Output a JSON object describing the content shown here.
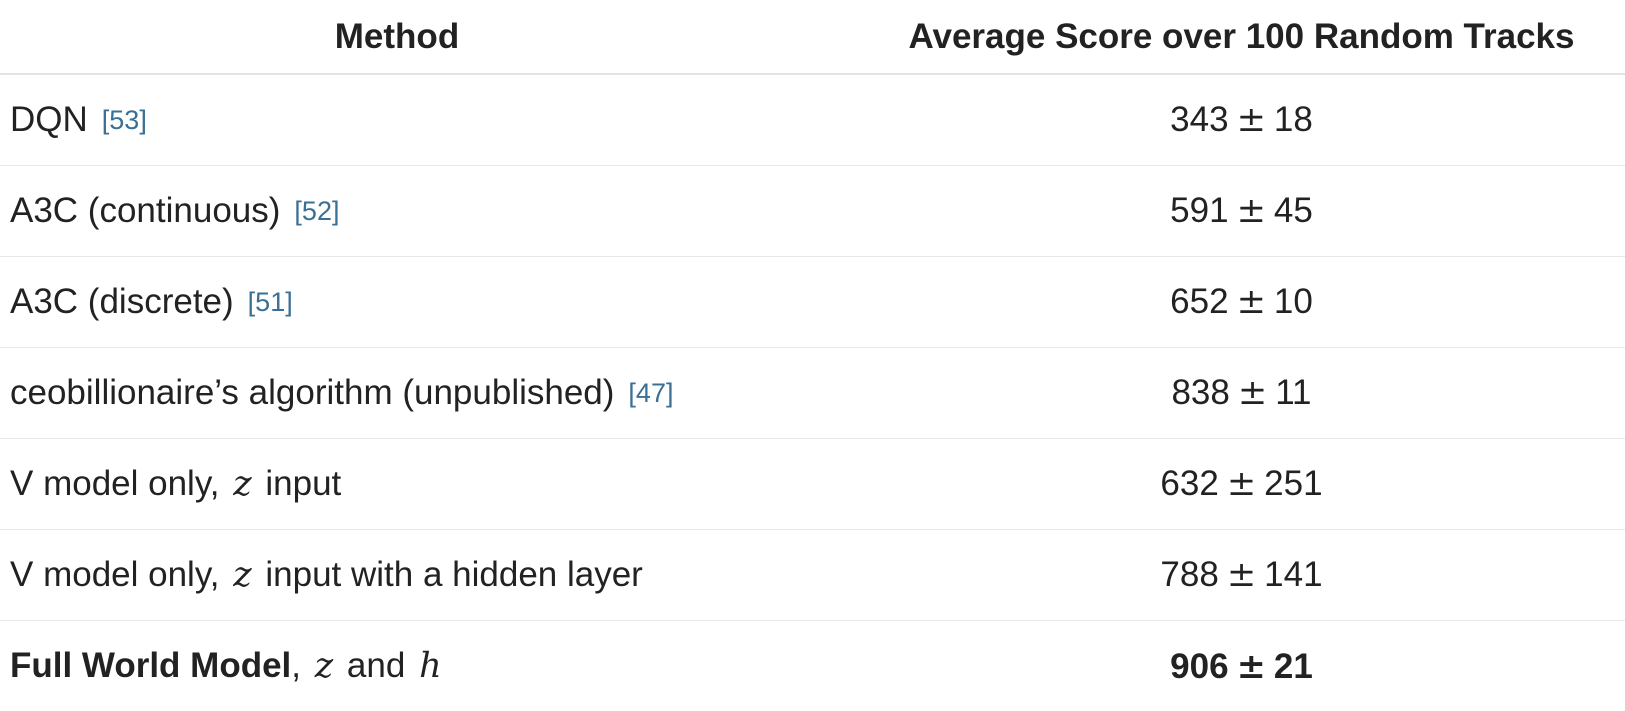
{
  "header": {
    "method": "Method",
    "score": "Average Score over 100 Random Tracks"
  },
  "pm_symbol": "±",
  "rows": [
    {
      "method": "DQN",
      "ref": "[53]",
      "mean": "343",
      "std": "18"
    },
    {
      "method": "A3C (continuous)",
      "ref": "[52]",
      "mean": "591",
      "std": "45"
    },
    {
      "method": "A3C (discrete)",
      "ref": "[51]",
      "mean": "652",
      "std": "10"
    },
    {
      "method": "ceobillionaire’s algorithm (unpublished)",
      "ref": "[47]",
      "mean": "838",
      "std": "11"
    },
    {
      "method_pre": "V model only,",
      "var": "z",
      "method_post": "input",
      "mean": "632",
      "std": "251"
    },
    {
      "method_pre": "V model only,",
      "var": "z",
      "method_post": "input with a hidden layer",
      "mean": "788",
      "std": "141"
    },
    {
      "method_bold": "Full World Model",
      "sep": ",",
      "var1": "z",
      "conj": "and",
      "var2": "h",
      "mean": "906",
      "std": "21"
    }
  ]
}
